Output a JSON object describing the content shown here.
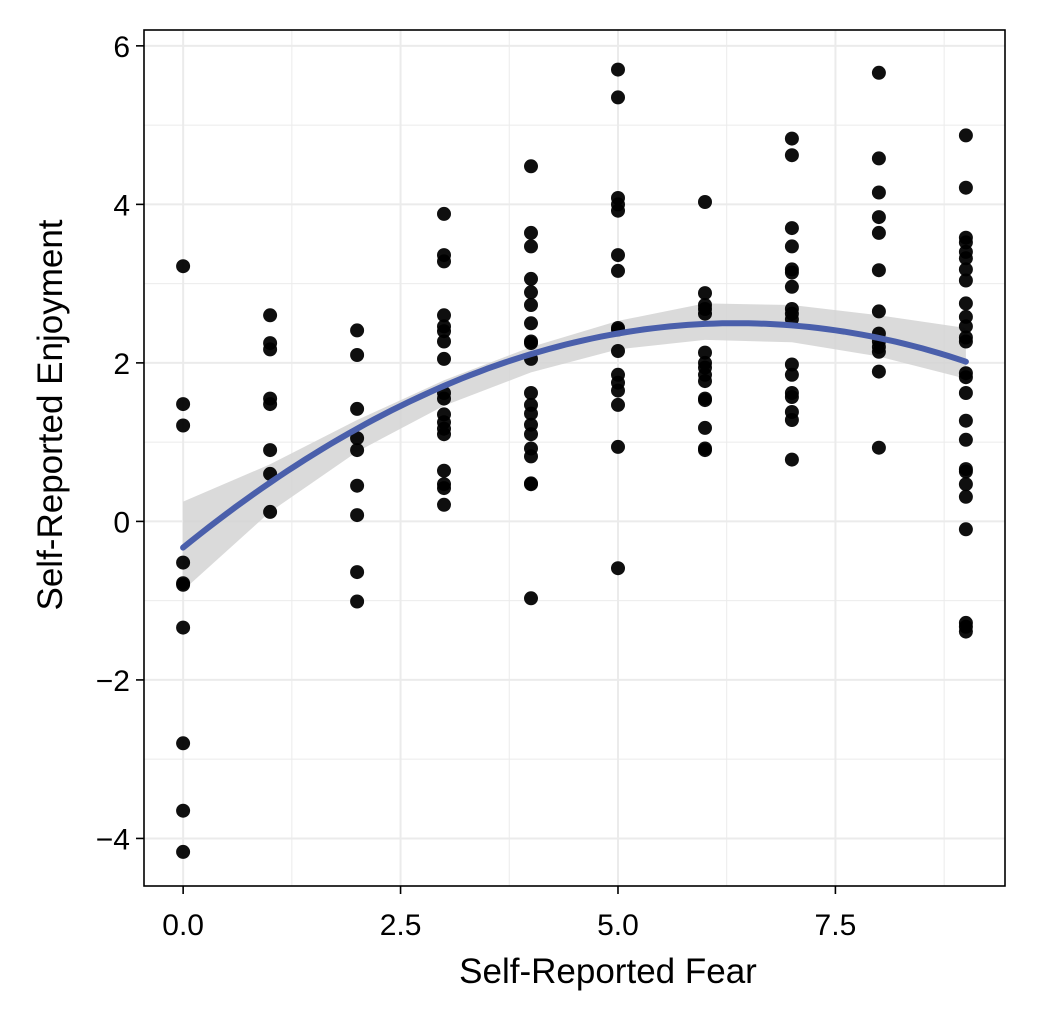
{
  "chart_data": {
    "type": "scatter",
    "title": "",
    "xlabel": "Self-Reported Fear",
    "ylabel": "Self-Reported Enjoyment",
    "xlim": [
      -0.45,
      9.45
    ],
    "ylim": [
      -4.6,
      6.2
    ],
    "x_ticks": [
      0.0,
      2.5,
      5.0,
      7.5
    ],
    "x_tick_labels": [
      "0.0",
      "2.5",
      "5.0",
      "7.5"
    ],
    "y_ticks": [
      -4,
      -2,
      0,
      2,
      4,
      6
    ],
    "y_tick_labels": [
      "−4",
      "−2",
      "0",
      "2",
      "4",
      "6"
    ],
    "grid": true,
    "legend": "none",
    "colors": {
      "points": "#000000",
      "fit_line": "#4a5fab",
      "confidence_band": "#d3d3d3",
      "grid": "#ebebeb",
      "panel_border": "#000000"
    },
    "series": [
      {
        "type": "scatter",
        "points": [
          [
            0,
            3.22
          ],
          [
            0,
            1.48
          ],
          [
            0,
            1.21
          ],
          [
            0,
            -0.52
          ],
          [
            0,
            -0.78
          ],
          [
            0,
            -0.8
          ],
          [
            0,
            -1.34
          ],
          [
            0,
            -2.8
          ],
          [
            0,
            -3.65
          ],
          [
            0,
            -4.17
          ],
          [
            1,
            2.6
          ],
          [
            1,
            2.25
          ],
          [
            1,
            2.17
          ],
          [
            1,
            1.55
          ],
          [
            1,
            1.48
          ],
          [
            1,
            0.9
          ],
          [
            1,
            0.6
          ],
          [
            1,
            0.12
          ],
          [
            2,
            2.41
          ],
          [
            2,
            2.1
          ],
          [
            2,
            1.42
          ],
          [
            2,
            1.05
          ],
          [
            2,
            0.9
          ],
          [
            2,
            0.45
          ],
          [
            2,
            0.08
          ],
          [
            2,
            -0.64
          ],
          [
            2,
            -1.01
          ],
          [
            3,
            3.88
          ],
          [
            3,
            3.36
          ],
          [
            3,
            3.28
          ],
          [
            3,
            2.6
          ],
          [
            3,
            2.46
          ],
          [
            3,
            2.4
          ],
          [
            3,
            2.27
          ],
          [
            3,
            2.05
          ],
          [
            3,
            1.62
          ],
          [
            3,
            1.55
          ],
          [
            3,
            1.35
          ],
          [
            3,
            1.25
          ],
          [
            3,
            1.17
          ],
          [
            3,
            1.1
          ],
          [
            3,
            0.64
          ],
          [
            3,
            0.47
          ],
          [
            3,
            0.42
          ],
          [
            3,
            0.21
          ],
          [
            4,
            4.48
          ],
          [
            4,
            3.64
          ],
          [
            4,
            3.47
          ],
          [
            4,
            3.06
          ],
          [
            4,
            2.89
          ],
          [
            4,
            2.73
          ],
          [
            4,
            2.5
          ],
          [
            4,
            2.27
          ],
          [
            4,
            2.25
          ],
          [
            4,
            2.05
          ],
          [
            4,
            1.62
          ],
          [
            4,
            1.47
          ],
          [
            4,
            1.36
          ],
          [
            4,
            1.22
          ],
          [
            4,
            1.1
          ],
          [
            4,
            0.92
          ],
          [
            4,
            0.82
          ],
          [
            4,
            0.48
          ],
          [
            4,
            0.47
          ],
          [
            4,
            -0.97
          ],
          [
            5,
            5.7
          ],
          [
            5,
            5.35
          ],
          [
            5,
            4.08
          ],
          [
            5,
            4.0
          ],
          [
            5,
            3.92
          ],
          [
            5,
            3.36
          ],
          [
            5,
            3.16
          ],
          [
            5,
            2.44
          ],
          [
            5,
            2.42
          ],
          [
            5,
            2.15
          ],
          [
            5,
            1.85
          ],
          [
            5,
            1.75
          ],
          [
            5,
            1.65
          ],
          [
            5,
            1.47
          ],
          [
            5,
            0.94
          ],
          [
            5,
            -0.59
          ],
          [
            6,
            4.03
          ],
          [
            6,
            2.88
          ],
          [
            6,
            2.73
          ],
          [
            6,
            2.68
          ],
          [
            6,
            2.62
          ],
          [
            6,
            2.13
          ],
          [
            6,
            2.0
          ],
          [
            6,
            1.94
          ],
          [
            6,
            1.85
          ],
          [
            6,
            1.77
          ],
          [
            6,
            1.55
          ],
          [
            6,
            1.53
          ],
          [
            6,
            1.18
          ],
          [
            6,
            0.92
          ],
          [
            6,
            0.9
          ],
          [
            7,
            4.83
          ],
          [
            7,
            4.62
          ],
          [
            7,
            3.7
          ],
          [
            7,
            3.47
          ],
          [
            7,
            3.18
          ],
          [
            7,
            3.14
          ],
          [
            7,
            2.96
          ],
          [
            7,
            2.68
          ],
          [
            7,
            2.62
          ],
          [
            7,
            2.55
          ],
          [
            7,
            1.98
          ],
          [
            7,
            1.85
          ],
          [
            7,
            1.62
          ],
          [
            7,
            1.57
          ],
          [
            7,
            1.38
          ],
          [
            7,
            1.28
          ],
          [
            7,
            0.78
          ],
          [
            8,
            5.66
          ],
          [
            8,
            4.58
          ],
          [
            8,
            4.15
          ],
          [
            8,
            3.84
          ],
          [
            8,
            3.64
          ],
          [
            8,
            3.17
          ],
          [
            8,
            2.65
          ],
          [
            8,
            2.37
          ],
          [
            8,
            2.27
          ],
          [
            8,
            2.2
          ],
          [
            8,
            2.14
          ],
          [
            8,
            1.89
          ],
          [
            8,
            0.93
          ],
          [
            9,
            4.87
          ],
          [
            9,
            4.21
          ],
          [
            9,
            3.58
          ],
          [
            9,
            3.52
          ],
          [
            9,
            3.4
          ],
          [
            9,
            3.32
          ],
          [
            9,
            3.18
          ],
          [
            9,
            3.04
          ],
          [
            9,
            2.75
          ],
          [
            9,
            2.58
          ],
          [
            9,
            2.46
          ],
          [
            9,
            2.32
          ],
          [
            9,
            2.27
          ],
          [
            9,
            1.87
          ],
          [
            9,
            1.82
          ],
          [
            9,
            1.62
          ],
          [
            9,
            1.27
          ],
          [
            9,
            1.03
          ],
          [
            9,
            0.66
          ],
          [
            9,
            0.63
          ],
          [
            9,
            0.47
          ],
          [
            9,
            0.31
          ],
          [
            9,
            -0.1
          ],
          [
            9,
            -1.28
          ],
          [
            9,
            -1.33
          ],
          [
            9,
            -1.39
          ]
        ]
      },
      {
        "type": "quadratic_fit",
        "x_range": [
          0,
          9
        ],
        "coefficients": {
          "a": -0.0699,
          "b": 0.8897,
          "c": -0.33
        },
        "confidence_band": {
          "x": [
            0,
            1,
            2,
            3,
            4,
            5,
            6,
            7,
            8,
            9
          ],
          "lower": [
            -0.87,
            0.12,
            0.88,
            1.46,
            1.88,
            2.17,
            2.29,
            2.26,
            2.08,
            1.8
          ],
          "upper": [
            0.25,
            0.72,
            1.28,
            1.78,
            2.2,
            2.53,
            2.75,
            2.73,
            2.6,
            2.44
          ]
        }
      }
    ]
  }
}
